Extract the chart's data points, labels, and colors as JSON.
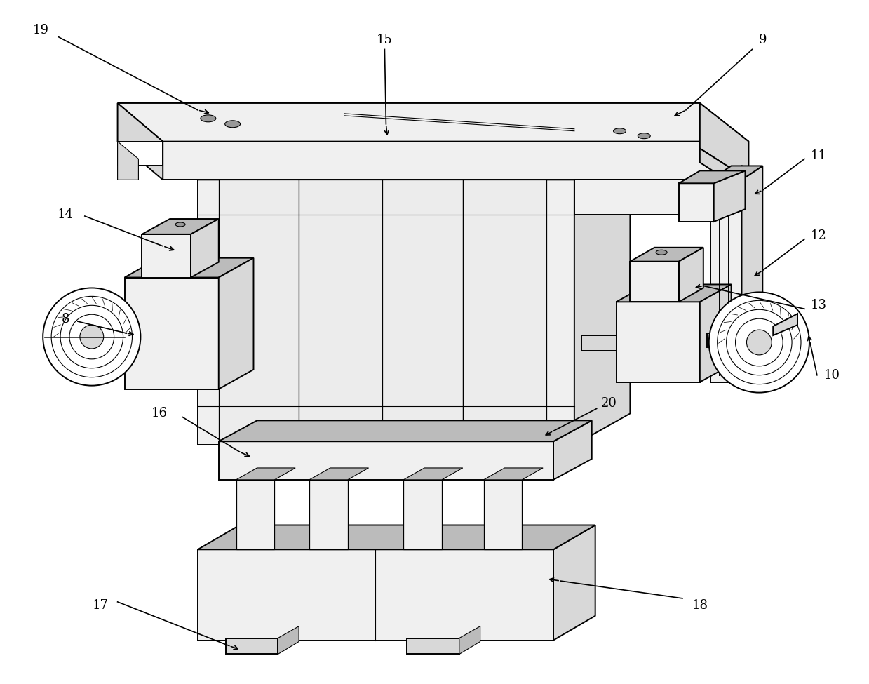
{
  "bg_color": "#ffffff",
  "line_color": "#000000",
  "fig_width": 12.39,
  "fig_height": 9.75,
  "lw_main": 1.4,
  "lw_thin": 0.8,
  "gray_light": "#f0f0f0",
  "gray_mid": "#d8d8d8",
  "gray_dark": "#bbbbbb",
  "gray_darker": "#999999",
  "white": "#ffffff",
  "annotation_fs": 13
}
